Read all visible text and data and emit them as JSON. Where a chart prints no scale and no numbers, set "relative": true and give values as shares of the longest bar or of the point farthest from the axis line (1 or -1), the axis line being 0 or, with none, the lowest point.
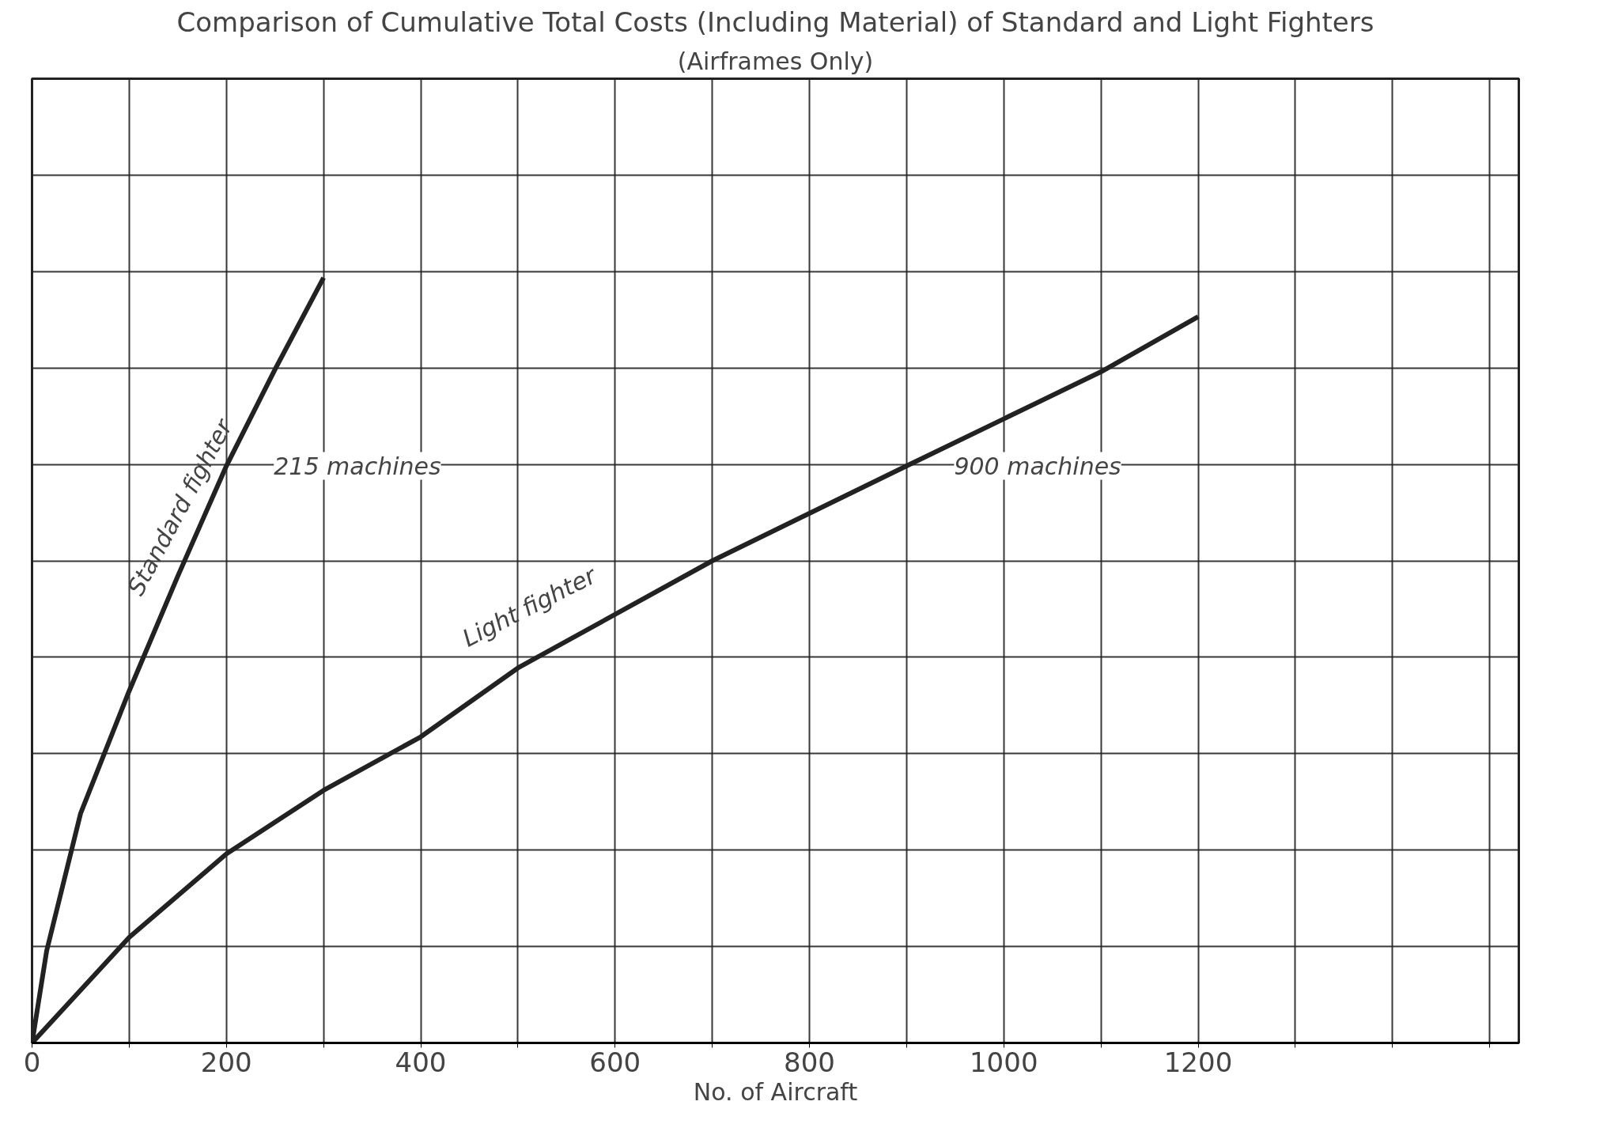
{
  "chart_data": {
    "type": "line",
    "title": "Comparison of Cumulative Total Costs (Including Material) of Standard and Light Fighters",
    "subtitle": "(Airframes Only)",
    "xlabel": "No. of Aircraft",
    "relative": true,
    "xlim": [
      0,
      1530
    ],
    "xticks": [
      0,
      {
        "value": 100,
        "label": null
      },
      200,
      {
        "value": 300,
        "label": null
      },
      400,
      {
        "value": 500,
        "label": null
      },
      600,
      {
        "value": 700,
        "label": null
      },
      800,
      {
        "value": 900,
        "label": null
      },
      1000,
      {
        "value": 1100,
        "label": null
      },
      1200,
      {
        "value": 1300,
        "label": null
      },
      {
        "value": 1400,
        "label": null
      },
      {
        "value": 1500,
        "label": null
      }
    ],
    "grid": true,
    "marker": "none",
    "line_style": "solid",
    "series": [
      {
        "name": "Standard fighter",
        "color": "#222222",
        "x": [
          0,
          15,
          50,
          100,
          150,
          200,
          250,
          300
        ],
        "values": [
          0,
          0.12,
          0.3,
          0.46,
          0.61,
          0.754,
          0.88,
          1.0
        ]
      },
      {
        "name": "Light fighter",
        "color": "#222222",
        "x": [
          0,
          100,
          200,
          300,
          400,
          500,
          700,
          900,
          1100,
          1200
        ],
        "values": [
          0,
          0.138,
          0.247,
          0.33,
          0.4,
          0.49,
          0.63,
          0.754,
          0.877,
          0.949
        ]
      }
    ],
    "annotations": [
      {
        "text": "215 machines",
        "x": 200,
        "y": 0.754
      },
      {
        "text": "900 machines",
        "x": 900,
        "y": 0.754
      }
    ]
  }
}
